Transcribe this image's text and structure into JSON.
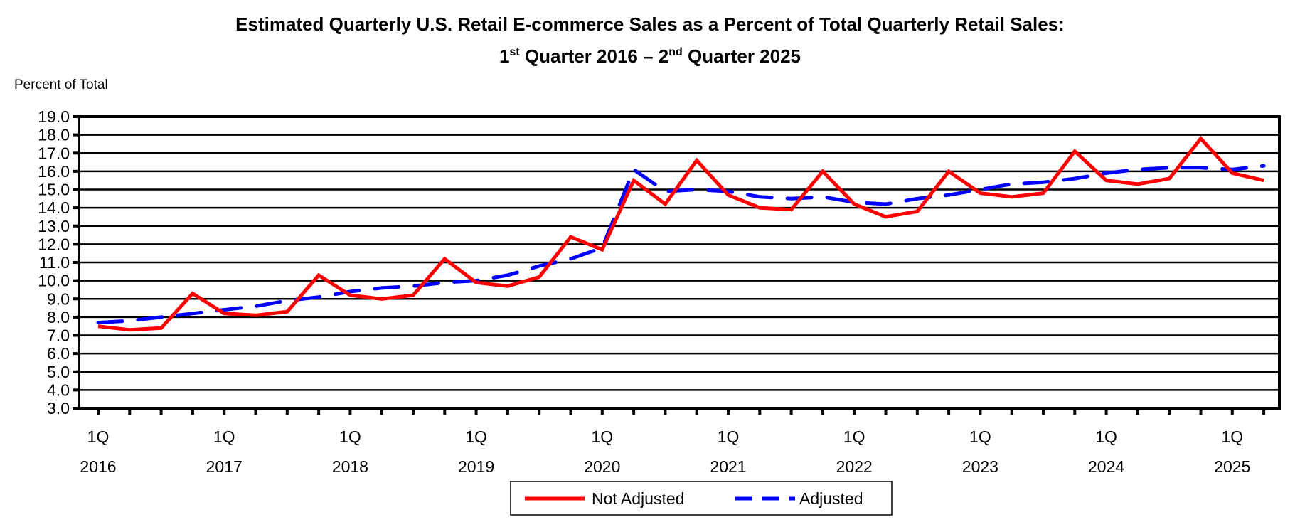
{
  "chart_data": {
    "type": "line",
    "title_line1": "Estimated Quarterly U.S. Retail E-commerce Sales as a Percent of Total Quarterly Retail Sales:",
    "title_line2": {
      "a": "1",
      "a_sup": "st",
      "b": " Quarter 2016 – 2",
      "b_sup": "nd",
      "c": " Quarter 2025"
    },
    "ylabel": "Percent of Total",
    "xlabel": "",
    "ylim": [
      3.0,
      19.0
    ],
    "yticks": [
      "3.0",
      "4.0",
      "5.0",
      "6.0",
      "7.0",
      "8.0",
      "9.0",
      "10.0",
      "11.0",
      "12.0",
      "13.0",
      "14.0",
      "15.0",
      "16.0",
      "17.0",
      "18.0",
      "19.0"
    ],
    "grid": true,
    "legend_position": "bottom-center",
    "x": [
      "2016Q1",
      "2016Q2",
      "2016Q3",
      "2016Q4",
      "2017Q1",
      "2017Q2",
      "2017Q3",
      "2017Q4",
      "2018Q1",
      "2018Q2",
      "2018Q3",
      "2018Q4",
      "2019Q1",
      "2019Q2",
      "2019Q3",
      "2019Q4",
      "2020Q1",
      "2020Q2",
      "2020Q3",
      "2020Q4",
      "2021Q1",
      "2021Q2",
      "2021Q3",
      "2021Q4",
      "2022Q1",
      "2022Q2",
      "2022Q3",
      "2022Q4",
      "2023Q1",
      "2023Q2",
      "2023Q3",
      "2023Q4",
      "2024Q1",
      "2024Q2",
      "2024Q3",
      "2024Q4",
      "2025Q1",
      "2025Q2"
    ],
    "xtick_labels": [
      {
        "q": "1Q",
        "year": "2016",
        "index": 0
      },
      {
        "q": "1Q",
        "year": "2017",
        "index": 4
      },
      {
        "q": "1Q",
        "year": "2018",
        "index": 8
      },
      {
        "q": "1Q",
        "year": "2019",
        "index": 12
      },
      {
        "q": "1Q",
        "year": "2020",
        "index": 16
      },
      {
        "q": "1Q",
        "year": "2021",
        "index": 20
      },
      {
        "q": "1Q",
        "year": "2022",
        "index": 24
      },
      {
        "q": "1Q",
        "year": "2023",
        "index": 28
      },
      {
        "q": "1Q",
        "year": "2024",
        "index": 32
      },
      {
        "q": "1Q",
        "year": "2025",
        "index": 36
      }
    ],
    "series": [
      {
        "name": "Not Adjusted",
        "color": "#ff0000",
        "style": "solid",
        "values": [
          7.5,
          7.3,
          7.4,
          9.3,
          8.2,
          8.1,
          8.3,
          10.3,
          9.2,
          9.0,
          9.2,
          11.2,
          9.9,
          9.7,
          10.2,
          12.4,
          11.7,
          15.5,
          14.2,
          16.6,
          14.7,
          14.0,
          13.9,
          16.0,
          14.2,
          13.5,
          13.8,
          16.0,
          14.8,
          14.6,
          14.8,
          17.1,
          15.5,
          15.3,
          15.6,
          17.8,
          15.9,
          15.5
        ]
      },
      {
        "name": "Adjusted",
        "color": "#0000ff",
        "style": "dashed",
        "values": [
          7.7,
          7.8,
          8.0,
          8.2,
          8.4,
          8.6,
          8.9,
          9.1,
          9.4,
          9.6,
          9.7,
          9.9,
          10.0,
          10.3,
          10.8,
          11.2,
          11.8,
          16.1,
          14.9,
          15.0,
          14.9,
          14.6,
          14.5,
          14.6,
          14.3,
          14.2,
          14.5,
          14.7,
          15.0,
          15.3,
          15.4,
          15.6,
          15.9,
          16.1,
          16.2,
          16.2,
          16.1,
          16.3
        ]
      }
    ]
  }
}
